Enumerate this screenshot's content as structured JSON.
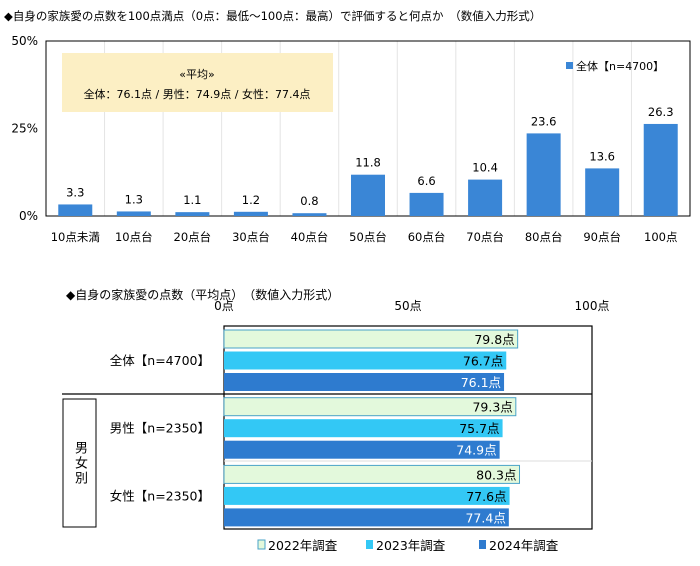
{
  "chart_data": [
    {
      "type": "bar",
      "title": "◆自身の家族愛の点数を100点満点（0点：最低～100点：最高）で評価すると何点か　（数値入力形式）",
      "categories": [
        "10点未満",
        "10点台",
        "20点台",
        "30点台",
        "40点台",
        "50点台",
        "60点台",
        "70点台",
        "80点台",
        "90点台",
        "100点"
      ],
      "series": [
        {
          "name": "全体【n=4700】",
          "values": [
            3.3,
            1.3,
            1.1,
            1.2,
            0.8,
            11.8,
            6.6,
            10.4,
            23.6,
            13.6,
            26.3
          ],
          "color": "#3a86d6"
        }
      ],
      "yticks": [
        "0%",
        "25%",
        "50%"
      ],
      "ylim": [
        0,
        50
      ],
      "grid": true,
      "legend": "top-right",
      "annotation": {
        "title": "«平均»",
        "text": "全体：76.1点 / 男性：74.9点 / 女性：77.4点"
      }
    },
    {
      "type": "bar",
      "orientation": "horizontal",
      "title": "◆自身の家族愛の点数（平均点）　（数値入力形式）",
      "xticks": [
        "0点",
        "50点",
        "100点"
      ],
      "xlim": [
        0,
        100
      ],
      "unit": "点",
      "categories": [
        "全体【n=4700】",
        "男性【n=2350】",
        "女性【n=2350】"
      ],
      "group_label": "男女別",
      "series": [
        {
          "name": "2022年調査",
          "values": [
            79.8,
            79.3,
            80.3
          ],
          "color": "#e3f9dc"
        },
        {
          "name": "2023年調査",
          "values": [
            76.7,
            75.7,
            77.6
          ],
          "color": "#33c8f5"
        },
        {
          "name": "2024年調査",
          "values": [
            76.1,
            74.9,
            77.4
          ],
          "color": "#2e7bcf"
        }
      ],
      "legend": "bottom"
    }
  ]
}
